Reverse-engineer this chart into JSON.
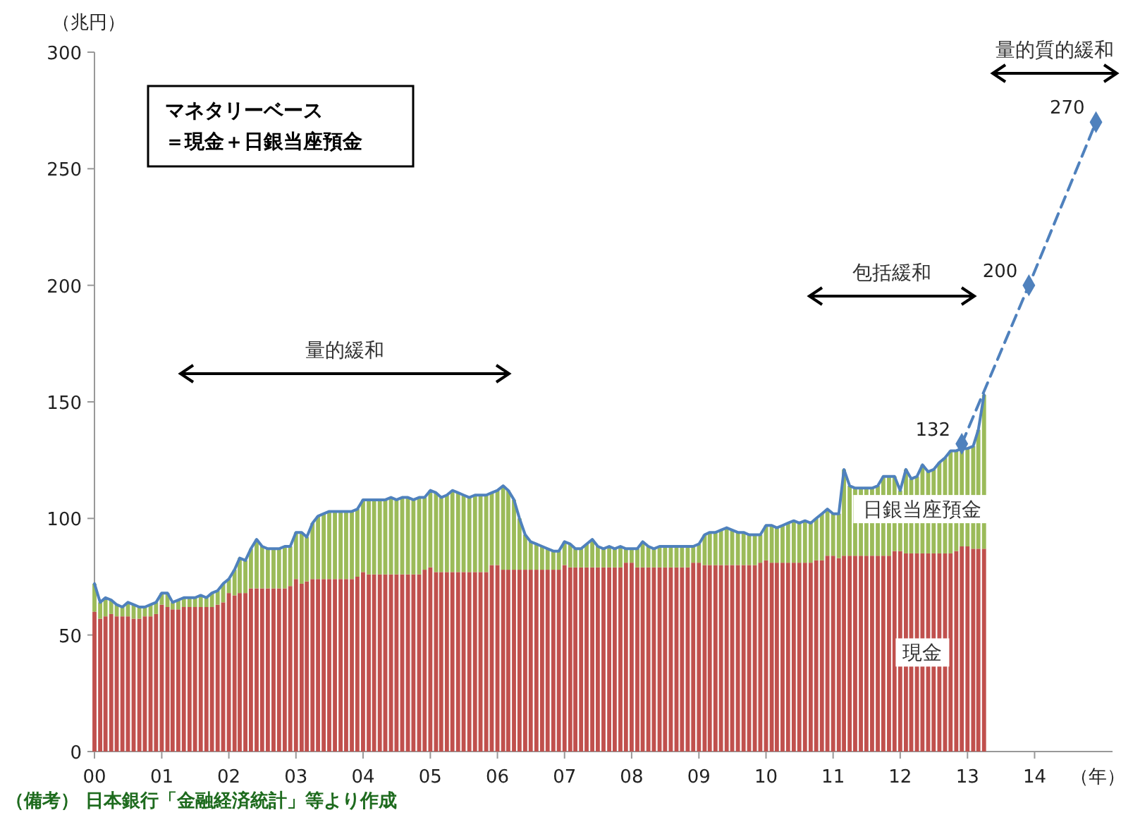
{
  "chart_data": {
    "type": "bar",
    "stacked": true,
    "ylabel": "（兆円）",
    "xlabel": "（年）",
    "x": [
      "2000-01",
      "2000-02",
      "2000-03",
      "2000-04",
      "2000-05",
      "2000-06",
      "2000-07",
      "2000-08",
      "2000-09",
      "2000-10",
      "2000-11",
      "2000-12",
      "2001-01",
      "2001-02",
      "2001-03",
      "2001-04",
      "2001-05",
      "2001-06",
      "2001-07",
      "2001-08",
      "2001-09",
      "2001-10",
      "2001-11",
      "2001-12",
      "2002-01",
      "2002-02",
      "2002-03",
      "2002-04",
      "2002-05",
      "2002-06",
      "2002-07",
      "2002-08",
      "2002-09",
      "2002-10",
      "2002-11",
      "2002-12",
      "2003-01",
      "2003-02",
      "2003-03",
      "2003-04",
      "2003-05",
      "2003-06",
      "2003-07",
      "2003-08",
      "2003-09",
      "2003-10",
      "2003-11",
      "2003-12",
      "2004-01",
      "2004-02",
      "2004-03",
      "2004-04",
      "2004-05",
      "2004-06",
      "2004-07",
      "2004-08",
      "2004-09",
      "2004-10",
      "2004-11",
      "2004-12",
      "2005-01",
      "2005-02",
      "2005-03",
      "2005-04",
      "2005-05",
      "2005-06",
      "2005-07",
      "2005-08",
      "2005-09",
      "2005-10",
      "2005-11",
      "2005-12",
      "2006-01",
      "2006-02",
      "2006-03",
      "2006-04",
      "2006-05",
      "2006-06",
      "2006-07",
      "2006-08",
      "2006-09",
      "2006-10",
      "2006-11",
      "2006-12",
      "2007-01",
      "2007-02",
      "2007-03",
      "2007-04",
      "2007-05",
      "2007-06",
      "2007-07",
      "2007-08",
      "2007-09",
      "2007-10",
      "2007-11",
      "2007-12",
      "2008-01",
      "2008-02",
      "2008-03",
      "2008-04",
      "2008-05",
      "2008-06",
      "2008-07",
      "2008-08",
      "2008-09",
      "2008-10",
      "2008-11",
      "2008-12",
      "2009-01",
      "2009-02",
      "2009-03",
      "2009-04",
      "2009-05",
      "2009-06",
      "2009-07",
      "2009-08",
      "2009-09",
      "2009-10",
      "2009-11",
      "2009-12",
      "2010-01",
      "2010-02",
      "2010-03",
      "2010-04",
      "2010-05",
      "2010-06",
      "2010-07",
      "2010-08",
      "2010-09",
      "2010-10",
      "2010-11",
      "2010-12",
      "2011-01",
      "2011-02",
      "2011-03",
      "2011-04",
      "2011-05",
      "2011-06",
      "2011-07",
      "2011-08",
      "2011-09",
      "2011-10",
      "2011-11",
      "2011-12",
      "2012-01",
      "2012-02",
      "2012-03",
      "2012-04",
      "2012-05",
      "2012-06",
      "2012-07",
      "2012-08",
      "2012-09",
      "2012-10",
      "2012-11",
      "2012-12",
      "2013-01",
      "2013-02",
      "2013-03",
      "2013-04"
    ],
    "series": [
      {
        "name": "現金",
        "color": "#c0504d",
        "values": [
          60,
          57,
          58,
          59,
          58,
          58,
          58,
          57,
          57,
          58,
          58,
          59,
          63,
          62,
          61,
          61,
          62,
          62,
          62,
          62,
          62,
          62,
          63,
          64,
          68,
          67,
          68,
          68,
          70,
          70,
          70,
          70,
          70,
          70,
          70,
          71,
          74,
          72,
          73,
          74,
          74,
          74,
          74,
          74,
          74,
          74,
          74,
          75,
          77,
          76,
          76,
          76,
          76,
          76,
          76,
          76,
          76,
          76,
          76,
          78,
          79,
          77,
          77,
          77,
          77,
          77,
          77,
          77,
          77,
          77,
          77,
          80,
          80,
          78,
          78,
          78,
          78,
          78,
          78,
          78,
          78,
          78,
          78,
          78,
          80,
          79,
          79,
          79,
          79,
          79,
          79,
          79,
          79,
          79,
          79,
          81,
          81,
          79,
          79,
          79,
          79,
          79,
          79,
          79,
          79,
          79,
          79,
          81,
          81,
          80,
          80,
          80,
          80,
          80,
          80,
          80,
          80,
          80,
          80,
          81,
          82,
          81,
          81,
          81,
          81,
          81,
          81,
          81,
          81,
          82,
          82,
          84,
          84,
          83,
          84,
          84,
          84,
          84,
          84,
          84,
          84,
          84,
          84,
          86,
          86,
          85,
          85,
          85,
          85,
          85,
          85,
          85,
          85,
          85,
          86,
          88,
          88,
          87,
          87,
          87
        ]
      },
      {
        "name": "日銀当座預金",
        "color": "#9bbb59",
        "values": [
          12,
          7,
          8,
          6,
          5,
          4,
          6,
          6,
          5,
          4,
          5,
          5,
          5,
          6,
          3,
          4,
          4,
          4,
          4,
          5,
          4,
          6,
          6,
          8,
          6,
          11,
          15,
          14,
          17,
          21,
          18,
          17,
          17,
          17,
          18,
          17,
          20,
          22,
          19,
          24,
          27,
          28,
          29,
          29,
          29,
          29,
          29,
          29,
          31,
          32,
          32,
          32,
          32,
          33,
          32,
          33,
          33,
          32,
          33,
          31,
          33,
          34,
          32,
          33,
          35,
          34,
          33,
          32,
          33,
          33,
          33,
          31,
          32,
          36,
          34,
          30,
          22,
          15,
          12,
          11,
          10,
          9,
          8,
          8,
          10,
          10,
          8,
          8,
          10,
          12,
          9,
          8,
          9,
          8,
          9,
          6,
          6,
          8,
          11,
          9,
          8,
          9,
          9,
          9,
          9,
          9,
          9,
          7,
          8,
          13,
          14,
          14,
          15,
          16,
          15,
          14,
          14,
          13,
          13,
          12,
          15,
          16,
          15,
          16,
          17,
          18,
          17,
          18,
          17,
          18,
          20,
          20,
          18,
          19,
          37,
          30,
          29,
          29,
          29,
          29,
          30,
          34,
          34,
          32,
          26,
          36,
          32,
          33,
          38,
          35,
          36,
          39,
          41,
          44,
          43,
          42,
          42,
          44,
          51,
          66
        ]
      },
      {
        "type": "line",
        "color": "#4f81bd",
        "values": [
          72,
          64,
          66,
          65,
          63,
          62,
          64,
          63,
          62,
          62,
          63,
          64,
          68,
          68,
          64,
          65,
          66,
          66,
          66,
          67,
          66,
          68,
          69,
          72,
          74,
          78,
          83,
          82,
          87,
          91,
          88,
          87,
          87,
          87,
          88,
          88,
          94,
          94,
          92,
          98,
          101,
          102,
          103,
          103,
          103,
          103,
          103,
          104,
          108,
          108,
          108,
          108,
          108,
          109,
          108,
          109,
          109,
          108,
          109,
          109,
          112,
          111,
          109,
          110,
          112,
          111,
          110,
          109,
          110,
          110,
          110,
          111,
          112,
          114,
          112,
          108,
          100,
          93,
          90,
          89,
          88,
          87,
          86,
          86,
          90,
          89,
          87,
          87,
          89,
          91,
          88,
          87,
          88,
          87,
          88,
          87,
          87,
          87,
          90,
          88,
          87,
          88,
          88,
          88,
          88,
          88,
          88,
          88,
          89,
          93,
          94,
          94,
          95,
          96,
          95,
          94,
          94,
          93,
          93,
          93,
          97,
          97,
          96,
          97,
          98,
          99,
          98,
          99,
          98,
          100,
          102,
          104,
          102,
          102,
          121,
          114,
          113,
          113,
          113,
          113,
          114,
          118,
          118,
          118,
          112,
          121,
          117,
          118,
          123,
          120,
          121,
          124,
          126,
          129,
          129,
          130,
          130,
          131,
          138,
          153
        ]
      },
      {
        "type": "line",
        "color": "#4f81bd",
        "line_style": "dashed",
        "marker": "diamond",
        "x": [
          "2012-12",
          "2013-12",
          "2014-12"
        ],
        "values": [
          132,
          200,
          270
        ],
        "value_labels": [
          "132",
          "200",
          "270"
        ]
      }
    ],
    "xlim": [
      "2000-01",
      "2015-03"
    ],
    "xticks": [
      {
        "value": "2000",
        "label": "00"
      },
      {
        "value": "2001",
        "label": "01"
      },
      {
        "value": "2002",
        "label": "02"
      },
      {
        "value": "2003",
        "label": "03"
      },
      {
        "value": "2004",
        "label": "04"
      },
      {
        "value": "2005",
        "label": "05"
      },
      {
        "value": "2006",
        "label": "06"
      },
      {
        "value": "2007",
        "label": "07"
      },
      {
        "value": "2008",
        "label": "08"
      },
      {
        "value": "2009",
        "label": "09"
      },
      {
        "value": "2010",
        "label": "10"
      },
      {
        "value": "2011",
        "label": "11"
      },
      {
        "value": "2012",
        "label": "12"
      },
      {
        "value": "2013",
        "label": "13"
      },
      {
        "value": "2014",
        "label": "14"
      }
    ],
    "ylim": [
      0,
      300
    ],
    "yticks": [
      0,
      50,
      100,
      150,
      200,
      250,
      300
    ],
    "annotations": [
      "マネタリーベース",
      "＝現金＋日銀当座預金",
      "量的緩和",
      "包括緩和",
      "量的質的緩和",
      "（備考） 日本銀行「金融経済統計」等より作成"
    ]
  }
}
